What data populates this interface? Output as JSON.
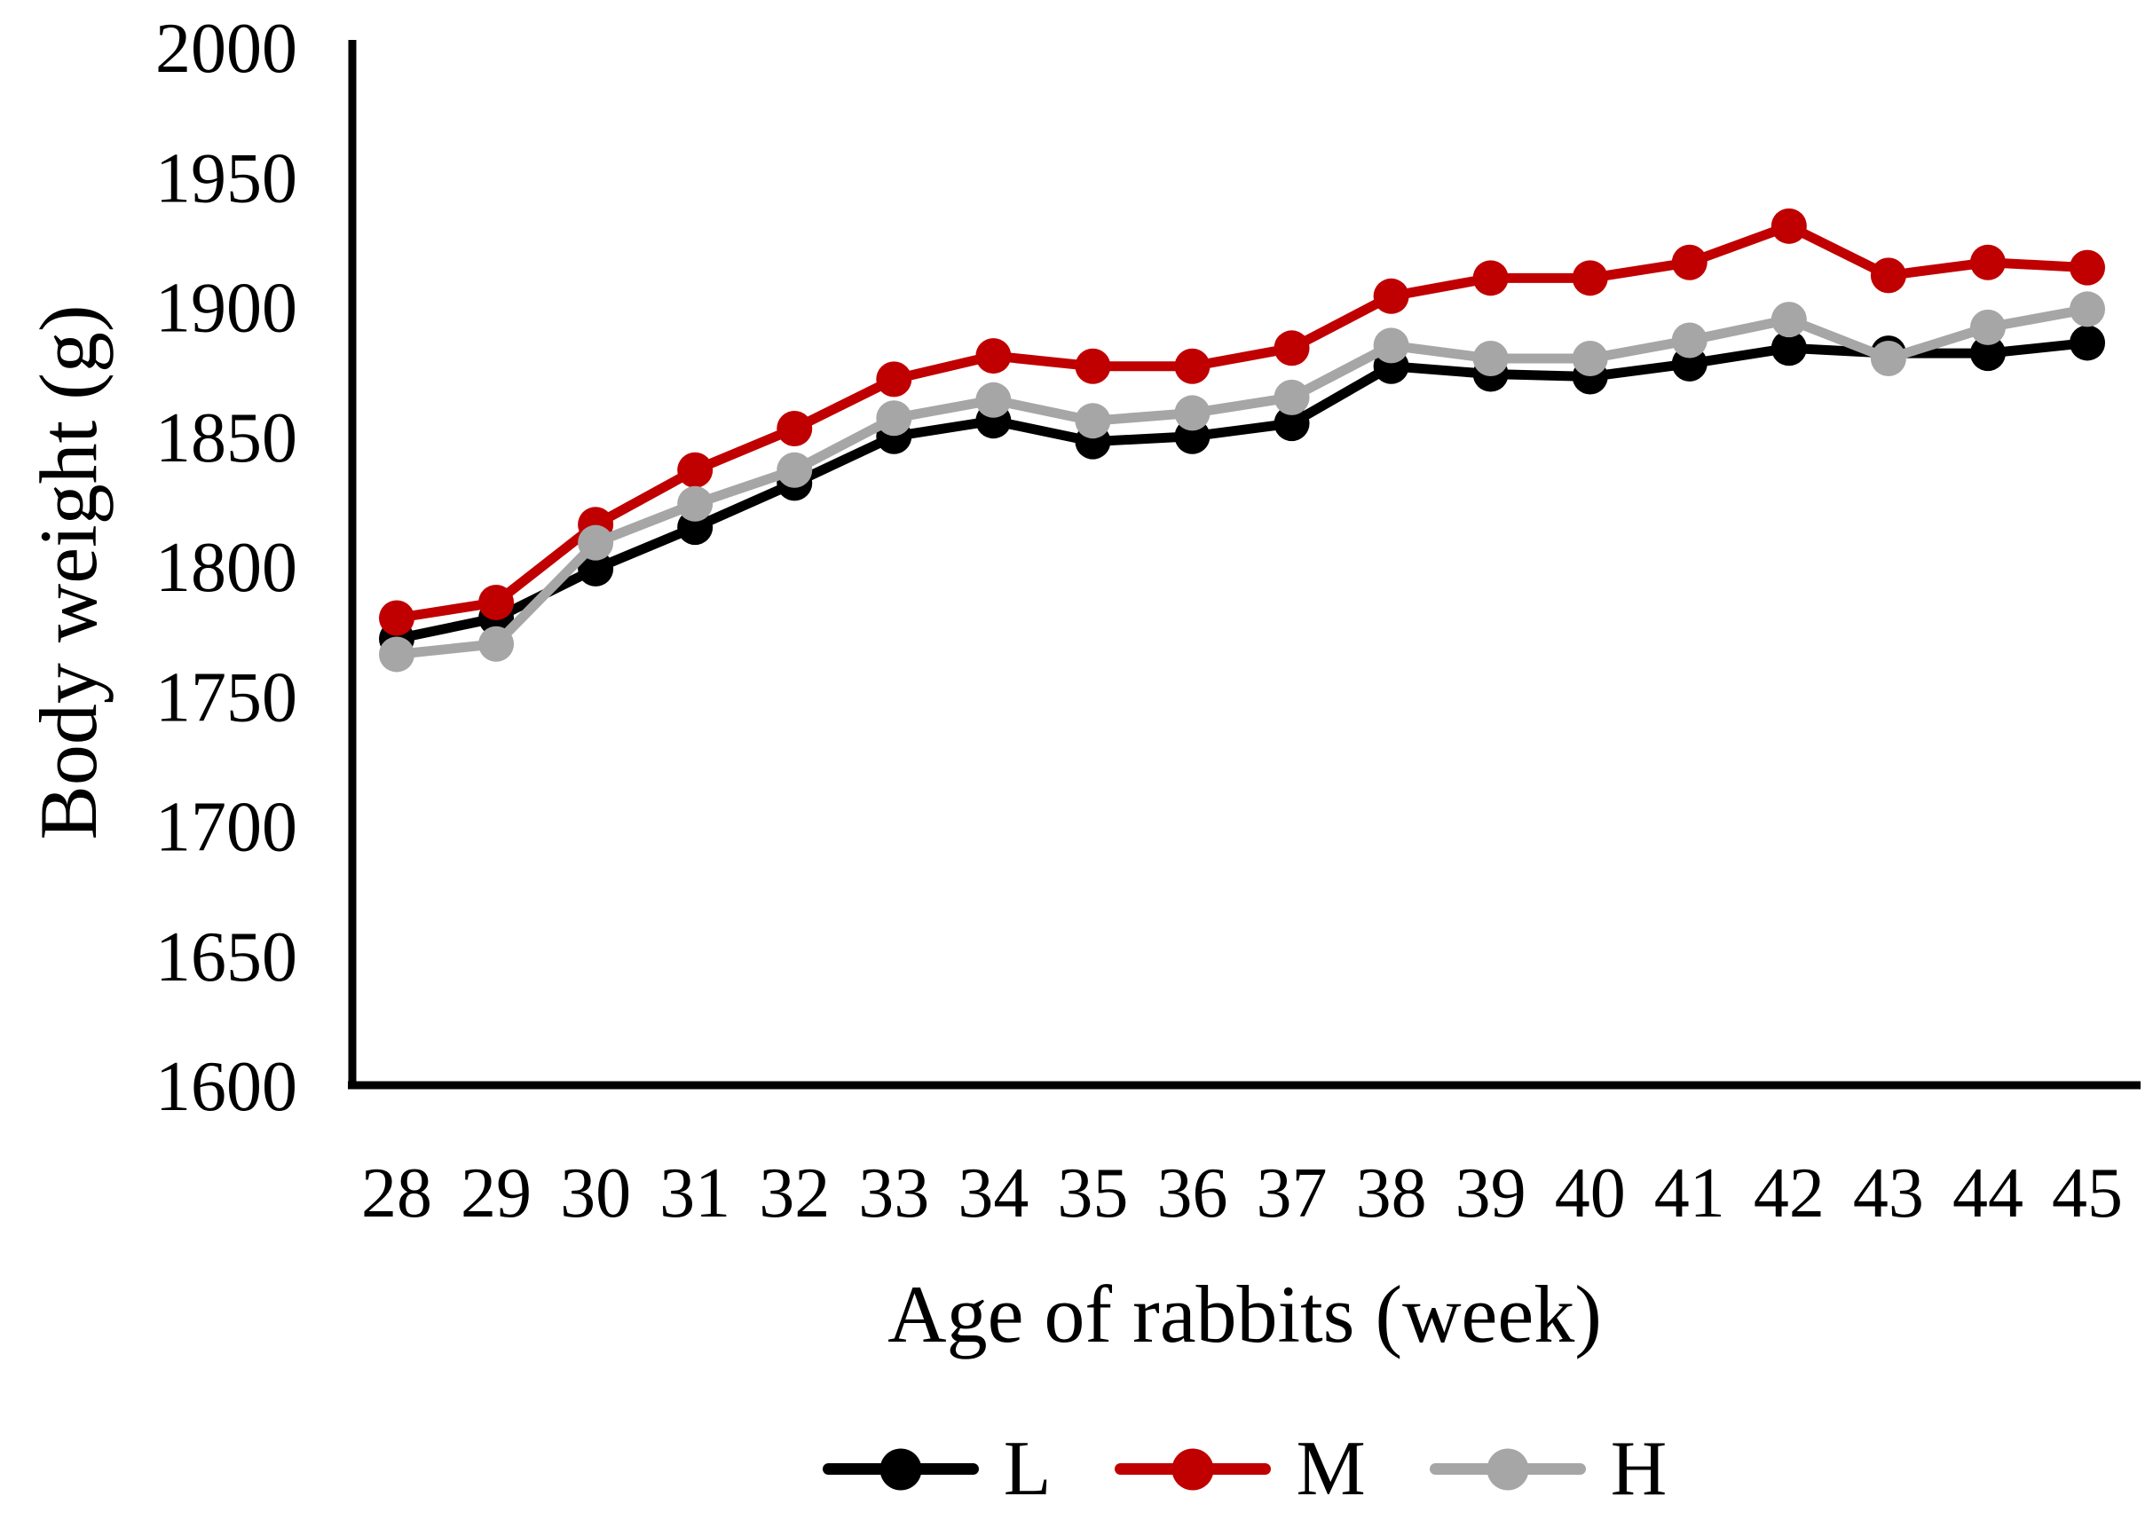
{
  "figure": {
    "background": "#ffffff",
    "text_color": "#000000"
  },
  "chart_data": {
    "type": "line",
    "title": "",
    "xlabel": "Age of rabbits (week)",
    "ylabel": "Body weight (g)",
    "x": [
      28,
      29,
      30,
      31,
      32,
      33,
      34,
      35,
      36,
      37,
      38,
      39,
      40,
      41,
      42,
      43,
      44,
      45
    ],
    "y_axis": {
      "min": 1600,
      "max": 2000,
      "tick_step": 50
    },
    "ylim": [
      1600,
      2000
    ],
    "grid": false,
    "series": [
      {
        "name": "L",
        "color": "#000000",
        "values": [
          1772,
          1780,
          1799,
          1815,
          1832,
          1850,
          1856,
          1848,
          1850,
          1855,
          1877,
          1874,
          1873,
          1878,
          1884,
          1882,
          1882,
          1886
        ]
      },
      {
        "name": "M",
        "color": "#C00000",
        "values": [
          1780,
          1786,
          1816,
          1837,
          1853,
          1872,
          1881,
          1877,
          1877,
          1884,
          1904,
          1911,
          1911,
          1917,
          1931,
          1912,
          1917,
          1915
        ]
      },
      {
        "name": "H",
        "color": "#A6A6A6",
        "values": [
          1766,
          1770,
          1809,
          1824,
          1837,
          1857,
          1864,
          1856,
          1859,
          1865,
          1885,
          1880,
          1880,
          1887,
          1895,
          1880,
          1892,
          1899
        ]
      }
    ],
    "legend": {
      "position": "bottom",
      "entries": [
        "L",
        "M",
        "H"
      ]
    }
  }
}
